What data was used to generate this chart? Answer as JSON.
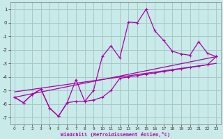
{
  "xlabel": "Windchill (Refroidissement éolien,°C)",
  "bg_color": "#c8eae8",
  "grid_color": "#a8c8c8",
  "line_color": "#aa00aa",
  "xlim": [
    -0.5,
    23.5
  ],
  "ylim": [
    -7.5,
    1.5
  ],
  "xticks": [
    0,
    1,
    2,
    3,
    4,
    5,
    6,
    7,
    8,
    9,
    10,
    11,
    12,
    13,
    14,
    15,
    16,
    17,
    18,
    19,
    20,
    21,
    22,
    23
  ],
  "yticks": [
    1,
    0,
    -1,
    -2,
    -3,
    -4,
    -5,
    -6,
    -7
  ],
  "series_zigzag1_x": [
    0,
    1,
    2,
    3,
    4,
    5,
    6,
    7,
    8,
    9,
    10,
    11,
    12,
    13,
    14,
    15,
    16,
    17,
    18,
    19,
    20,
    21,
    22,
    23
  ],
  "series_zigzag1_y": [
    -5.5,
    -5.9,
    -5.3,
    -4.9,
    -6.3,
    -6.9,
    -5.9,
    -5.8,
    -5.8,
    -5.7,
    -5.5,
    -5.0,
    -4.1,
    -4.0,
    -3.9,
    -3.8,
    -3.7,
    -3.6,
    -3.5,
    -3.4,
    -3.3,
    -3.2,
    -3.1,
    -2.5
  ],
  "series_zigzag2_x": [
    0,
    1,
    2,
    3,
    4,
    5,
    6,
    7,
    8,
    9,
    10,
    11,
    12,
    13,
    14,
    15,
    16,
    17,
    18,
    19,
    20,
    21,
    22,
    23
  ],
  "series_zigzag2_y": [
    -5.5,
    -5.9,
    -5.3,
    -4.9,
    -6.3,
    -6.9,
    -5.9,
    -4.2,
    -5.8,
    -5.0,
    -2.5,
    -1.7,
    -2.6,
    0.05,
    0.0,
    1.0,
    -0.6,
    -1.3,
    -2.1,
    -2.3,
    -2.4,
    -1.4,
    -2.25,
    -2.5
  ],
  "series_trend1_x": [
    0,
    23
  ],
  "series_trend1_y": [
    -5.5,
    -2.5
  ],
  "series_trend2_x": [
    0,
    23
  ],
  "series_trend2_y": [
    -5.1,
    -3.0
  ]
}
